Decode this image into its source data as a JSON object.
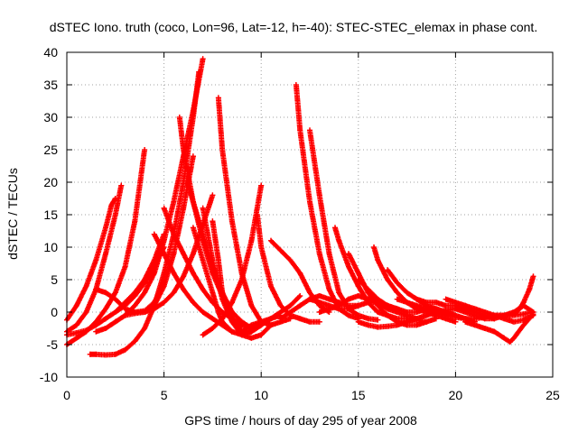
{
  "chart_data": {
    "type": "scatter",
    "title": "dSTEC Iono. truth (coco, Lon=96, Lat=-12, h=-40): STEC-STEC_elemax in phase cont.",
    "xlabel": "GPS time / hours of day 295 of year 2008",
    "ylabel": "dSTEC  / TECUs",
    "xlim": [
      0,
      25
    ],
    "ylim": [
      -10,
      40
    ],
    "xticks": [
      0,
      5,
      10,
      15,
      20,
      25
    ],
    "yticks": [
      -10,
      -5,
      0,
      5,
      10,
      15,
      20,
      25,
      30,
      35,
      40
    ],
    "xtick_labels": [
      "0",
      "5",
      "10",
      "15",
      "20",
      "25"
    ],
    "ytick_labels": [
      "-10",
      "-5",
      "0",
      "5",
      "10",
      "15",
      "20",
      "25",
      "30",
      "35",
      "40"
    ],
    "grid": true,
    "marker": "plus",
    "color": "#ff0000",
    "series": [
      {
        "x": [
          0.0,
          0.5,
          1.0,
          1.5,
          2.0,
          2.3,
          2.5
        ],
        "y": [
          -1.2,
          1.0,
          4.0,
          8.0,
          13.0,
          16.5,
          17.5
        ]
      },
      {
        "x": [
          0.0,
          0.5,
          1.0,
          1.5,
          2.0,
          2.5,
          2.8
        ],
        "y": [
          -3.0,
          -2.0,
          0.0,
          3.5,
          9.0,
          15.0,
          19.5
        ]
      },
      {
        "x": [
          0.0,
          0.5,
          1.0,
          1.5,
          2.0,
          2.5,
          3.0,
          3.5,
          4.0
        ],
        "y": [
          -5.0,
          -4.0,
          -3.0,
          -1.5,
          0.5,
          3.0,
          7.0,
          14.0,
          25.0
        ]
      },
      {
        "x": [
          0.0,
          0.5,
          1.0,
          1.5,
          2.0,
          2.5,
          3.0,
          3.5,
          4.0,
          4.5,
          5.0
        ],
        "y": [
          -3.5,
          -3.2,
          -2.8,
          -2.0,
          -1.0,
          0.0,
          1.0,
          2.5,
          4.5,
          7.0,
          10.0
        ]
      },
      {
        "x": [
          1.2,
          1.5,
          2.0,
          2.5,
          3.0,
          3.5,
          4.0,
          4.5,
          5.0,
          5.5,
          6.0,
          6.5,
          6.8
        ],
        "y": [
          -6.5,
          -6.5,
          -6.6,
          -6.5,
          -5.8,
          -4.5,
          -2.5,
          1.0,
          6.0,
          12.0,
          20.0,
          30.0,
          37.0
        ]
      },
      {
        "x": [
          1.5,
          2.0,
          2.5,
          3.0,
          3.5,
          4.0,
          4.5,
          5.0,
          5.5,
          6.0,
          6.5,
          7.0
        ],
        "y": [
          -3.0,
          -2.5,
          -1.5,
          -0.5,
          1.0,
          3.0,
          6.0,
          11.0,
          17.0,
          24.0,
          31.0,
          39.0
        ]
      },
      {
        "x": [
          1.5,
          2.0,
          2.5,
          3.0,
          3.5,
          4.0,
          4.5,
          5.0
        ],
        "y": [
          3.5,
          3.0,
          2.0,
          0.5,
          0.0,
          0.2,
          1.5,
          4.5
        ]
      },
      {
        "x": [
          2.5,
          3.0,
          3.5,
          4.0,
          4.5,
          5.0
        ],
        "y": [
          0.0,
          1.5,
          3.0,
          5.0,
          8.0,
          12.0
        ]
      },
      {
        "x": [
          3.0,
          3.5,
          4.0,
          4.5,
          5.0,
          5.5,
          6.0,
          6.5,
          7.0,
          7.5
        ],
        "y": [
          -0.5,
          -0.2,
          0.0,
          0.5,
          1.5,
          3.0,
          5.5,
          9.0,
          13.5,
          18.0
        ]
      },
      {
        "x": [
          3.5,
          4.0,
          4.5,
          5.0,
          5.5,
          6.0,
          6.5
        ],
        "y": [
          0.0,
          0.0,
          1.0,
          4.0,
          9.0,
          16.0,
          24.0
        ]
      },
      {
        "x": [
          4.5,
          5.0,
          5.5,
          6.0,
          6.5,
          7.0,
          7.5,
          8.0,
          8.5
        ],
        "y": [
          12.0,
          9.0,
          6.0,
          3.5,
          1.5,
          0.0,
          -1.0,
          -2.0,
          -3.0
        ]
      },
      {
        "x": [
          5.0,
          5.5,
          6.0,
          6.5,
          7.0,
          7.5,
          8.0,
          8.5,
          9.0,
          9.5,
          10.0
        ],
        "y": [
          16.0,
          12.0,
          9.0,
          6.0,
          3.5,
          1.5,
          0.0,
          -1.0,
          -2.0,
          -2.5,
          -2.0
        ]
      },
      {
        "x": [
          5.8,
          6.0,
          6.5,
          7.0,
          7.5,
          8.0,
          8.5,
          9.0,
          9.5,
          10.0
        ],
        "y": [
          30.0,
          25.0,
          17.0,
          11.0,
          6.0,
          2.5,
          0.0,
          -1.5,
          -2.5,
          -2.0
        ]
      },
      {
        "x": [
          6.2,
          6.5,
          7.0,
          7.5,
          8.0,
          8.5,
          9.0,
          9.5,
          10.0
        ],
        "y": [
          20.0,
          17.0,
          12.0,
          7.0,
          3.0,
          0.0,
          -1.5,
          -2.5,
          -2.0
        ]
      },
      {
        "x": [
          6.5,
          7.0,
          7.5,
          7.8,
          8.0,
          8.5,
          9.0,
          9.5,
          10.0
        ],
        "y": [
          13.0,
          8.0,
          3.0,
          0.0,
          -1.5,
          -3.0,
          -3.5,
          -3.0,
          -2.0
        ]
      },
      {
        "x": [
          7.0,
          7.5,
          8.0,
          8.5,
          9.0,
          9.5,
          10.0,
          10.5
        ],
        "y": [
          16.0,
          8.0,
          2.0,
          -1.5,
          -3.5,
          -4.0,
          -3.5,
          -2.0
        ]
      },
      {
        "x": [
          7.5,
          7.8,
          8.0,
          8.5,
          9.0,
          9.5,
          10.0,
          10.5,
          11.0
        ],
        "y": [
          14.0,
          8.0,
          3.0,
          -1.0,
          -3.0,
          -3.0,
          -2.0,
          -1.0,
          -0.5
        ]
      },
      {
        "x": [
          7.8,
          8.0,
          8.5,
          9.0,
          9.5,
          10.0,
          10.5,
          11.0,
          11.5
        ],
        "y": [
          33.0,
          25.0,
          14.0,
          6.0,
          1.0,
          -1.5,
          -2.0,
          -1.5,
          -1.0
        ]
      },
      {
        "x": [
          7.0,
          7.5,
          8.0,
          8.5,
          9.0,
          9.5,
          10.0
        ],
        "y": [
          -3.5,
          -2.5,
          -1.0,
          1.5,
          5.0,
          11.0,
          19.5
        ]
      },
      {
        "x": [
          9.0,
          9.5,
          10.0,
          10.5,
          11.0,
          11.5,
          12.0
        ],
        "y": [
          -3.0,
          -2.0,
          -1.5,
          -1.0,
          0.0,
          1.0,
          2.5
        ]
      },
      {
        "x": [
          10.5,
          11.0,
          11.5,
          12.0,
          12.5,
          13.0,
          13.5
        ],
        "y": [
          11.0,
          9.5,
          8.0,
          6.0,
          3.0,
          1.0,
          0.0
        ]
      },
      {
        "x": [
          9.8,
          10.0,
          10.5,
          11.0,
          11.5,
          12.0,
          12.5,
          13.0
        ],
        "y": [
          15.0,
          10.0,
          4.0,
          1.0,
          -0.5,
          -1.0,
          -1.5,
          -1.5
        ]
      },
      {
        "x": [
          11.8,
          12.0,
          12.5,
          13.0,
          13.5,
          14.0,
          14.5,
          15.0
        ],
        "y": [
          35.0,
          28.0,
          17.0,
          9.0,
          3.5,
          0.5,
          -0.5,
          -1.0
        ]
      },
      {
        "x": [
          12.5,
          13.0,
          13.5,
          14.0,
          14.5,
          15.0,
          15.5,
          16.0
        ],
        "y": [
          28.0,
          18.0,
          9.0,
          3.0,
          0.5,
          -0.5,
          -1.0,
          -1.2
        ]
      },
      {
        "x": [
          11.0,
          11.5,
          12.0,
          12.5,
          13.0,
          13.5,
          14.0,
          14.5,
          15.0
        ],
        "y": [
          -1.0,
          0.0,
          1.0,
          2.0,
          2.5,
          2.0,
          1.5,
          1.0,
          1.0
        ]
      },
      {
        "x": [
          12.5,
          13.0,
          13.5,
          14.0,
          14.5,
          15.0,
          15.5,
          16.0,
          16.5,
          17.0
        ],
        "y": [
          2.0,
          1.5,
          1.0,
          0.5,
          0.5,
          1.0,
          1.5,
          1.5,
          1.0,
          0.5
        ]
      },
      {
        "x": [
          13.0,
          13.5,
          14.0,
          14.5,
          15.0,
          15.5,
          16.0,
          16.5,
          17.0,
          17.5,
          18.0
        ],
        "y": [
          0.0,
          0.5,
          1.0,
          2.0,
          2.5,
          2.0,
          1.5,
          0.5,
          0.0,
          -0.5,
          -1.0
        ]
      },
      {
        "x": [
          13.8,
          14.0,
          14.5,
          15.0,
          15.5,
          16.0,
          16.5,
          17.0,
          17.5,
          18.0,
          18.5
        ],
        "y": [
          13.0,
          11.0,
          7.0,
          4.0,
          1.5,
          0.0,
          -0.5,
          -1.0,
          -1.0,
          -1.2,
          -1.5
        ]
      },
      {
        "x": [
          14.5,
          15.0,
          15.5,
          16.0,
          16.5,
          17.0,
          17.5,
          18.0,
          18.5,
          19.0
        ],
        "y": [
          9.0,
          6.0,
          3.0,
          1.0,
          -0.5,
          -1.5,
          -2.0,
          -2.0,
          -1.5,
          -1.0
        ]
      },
      {
        "x": [
          15.0,
          15.5,
          16.0,
          16.5,
          17.0,
          17.5,
          18.0,
          18.5,
          19.0,
          19.5,
          20.0
        ],
        "y": [
          5.0,
          3.5,
          2.0,
          1.0,
          0.5,
          0.0,
          0.0,
          0.5,
          0.5,
          0.0,
          -0.5
        ]
      },
      {
        "x": [
          15.8,
          16.0,
          16.5,
          17.0,
          17.5,
          18.0,
          18.5,
          19.0,
          19.5,
          20.0
        ],
        "y": [
          10.0,
          8.0,
          5.0,
          3.0,
          1.5,
          0.5,
          0.0,
          -0.5,
          -1.0,
          -1.5
        ]
      },
      {
        "x": [
          16.5,
          17.0,
          17.5,
          18.0,
          18.5,
          19.0,
          19.5,
          20.0,
          20.5,
          21.0
        ],
        "y": [
          6.5,
          4.5,
          3.0,
          2.0,
          1.0,
          0.5,
          0.0,
          -0.5,
          -1.0,
          -1.5
        ]
      },
      {
        "x": [
          17.0,
          17.5,
          18.0,
          18.5,
          19.0,
          19.5,
          20.0,
          20.5,
          21.0,
          21.5,
          22.0,
          22.5,
          23.0,
          23.5,
          24.0
        ],
        "y": [
          2.0,
          1.5,
          1.0,
          0.5,
          0.0,
          -0.5,
          -0.8,
          -1.0,
          -1.0,
          -0.8,
          -0.5,
          -0.5,
          -0.5,
          -0.3,
          0.0
        ]
      },
      {
        "x": [
          15.0,
          15.5,
          16.0,
          16.5,
          17.0,
          17.5,
          18.0,
          18.5,
          19.0,
          19.5,
          20.0,
          20.5,
          21.0
        ],
        "y": [
          -1.5,
          -2.0,
          -2.3,
          -2.2,
          -2.0,
          -1.5,
          -1.0,
          -0.5,
          0.0,
          0.3,
          0.5,
          0.5,
          0.3
        ]
      },
      {
        "x": [
          18.0,
          18.5,
          19.0,
          19.5,
          20.0,
          20.5,
          21.0,
          21.5,
          22.0
        ],
        "y": [
          2.0,
          1.5,
          1.5,
          1.0,
          1.0,
          0.5,
          0.0,
          -0.5,
          -1.0
        ]
      },
      {
        "x": [
          19.5,
          20.0,
          20.5,
          21.0,
          21.5,
          22.0,
          22.5,
          23.0,
          23.5,
          24.0
        ],
        "y": [
          2.0,
          1.5,
          1.0,
          0.5,
          0.0,
          -0.5,
          -1.0,
          -1.5,
          -1.2,
          -0.5
        ]
      },
      {
        "x": [
          20.0,
          20.5,
          21.0,
          21.5,
          22.0,
          22.5,
          23.0,
          23.5,
          24.0
        ],
        "y": [
          0.5,
          0.0,
          -0.5,
          -1.0,
          -1.0,
          -0.5,
          0.0,
          1.0,
          0.0
        ]
      },
      {
        "x": [
          20.5,
          21.0,
          21.5,
          22.0,
          22.5,
          22.8,
          23.0,
          23.5,
          24.0
        ],
        "y": [
          -1.5,
          -2.0,
          -2.5,
          -3.0,
          -4.0,
          -4.6,
          -4.0,
          -2.0,
          -0.3
        ]
      },
      {
        "x": [
          22.0,
          22.5,
          23.0,
          23.3,
          23.5,
          23.8,
          24.0
        ],
        "y": [
          -0.5,
          -0.5,
          -0.3,
          0.5,
          1.5,
          3.5,
          5.5
        ]
      }
    ]
  }
}
